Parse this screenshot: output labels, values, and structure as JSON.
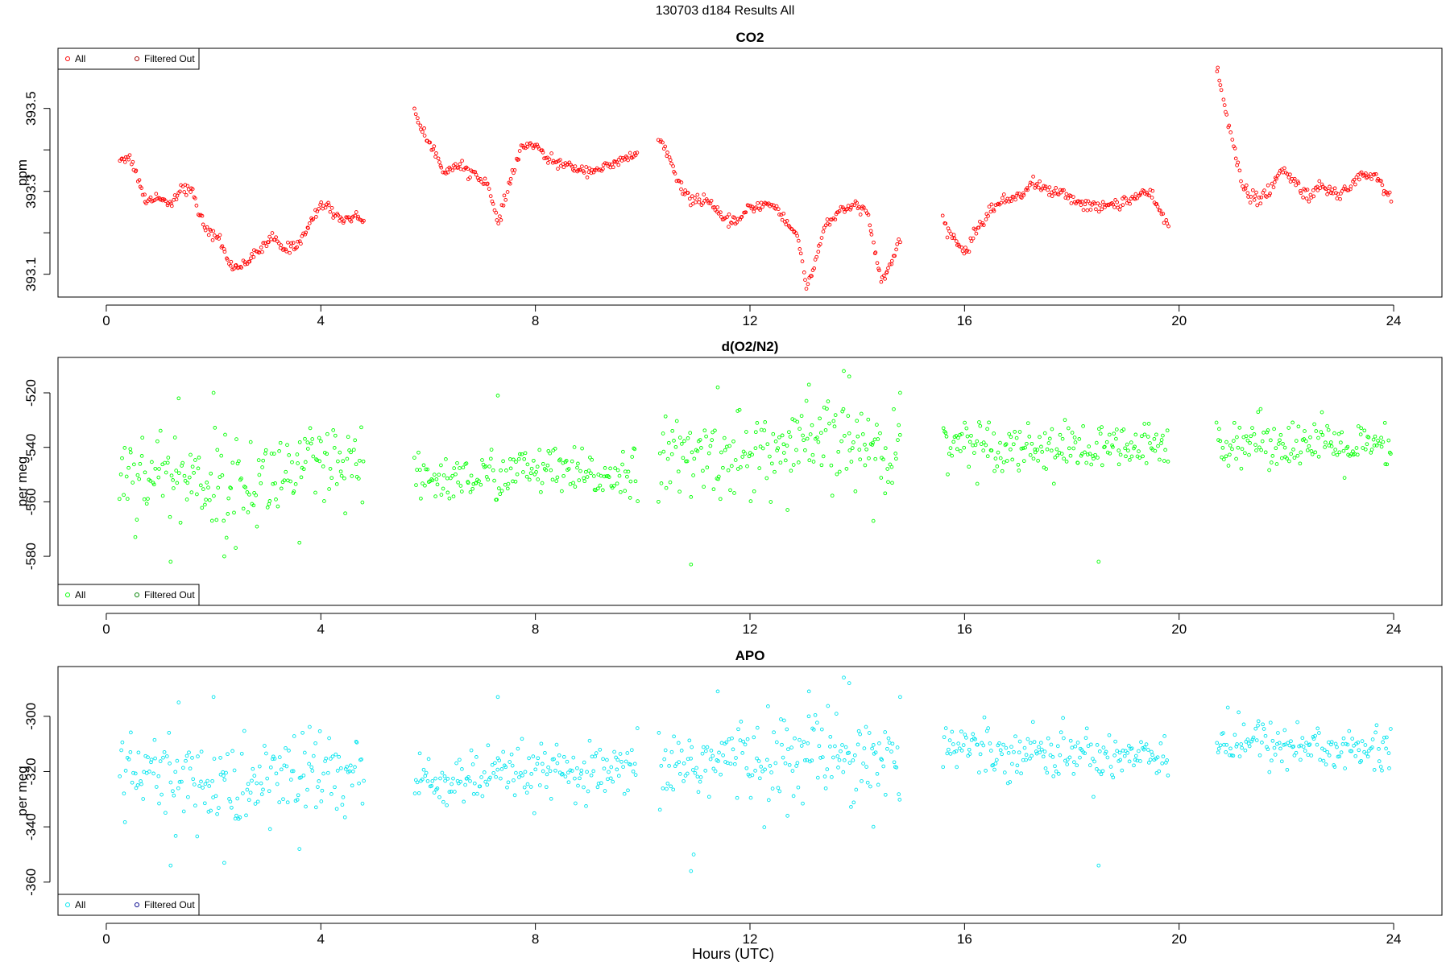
{
  "figure": {
    "title": "130703   d184   Results All",
    "xlabel": "Hours (UTC)"
  },
  "chart_data": [
    {
      "type": "scatter",
      "title": "CO2",
      "ylabel": "ppm",
      "xlabel": "Hours (UTC)",
      "xlim": [
        -0.9,
        24.9
      ],
      "ylim": [
        393.045,
        393.645
      ],
      "xticks": [
        0,
        4,
        8,
        12,
        16,
        20,
        24
      ],
      "yticks": [
        393.1,
        393.3,
        393.5
      ],
      "ytick_labels": [
        "393.1",
        "393.3",
        "393.5"
      ],
      "grid": false,
      "legend": {
        "position": "top-left",
        "entries": [
          "All",
          "Filtered Out"
        ],
        "colors": [
          "#ff0000",
          "#a00000"
        ]
      },
      "marker": "open-circle",
      "series": [
        {
          "name": "All",
          "color": "#ff0000",
          "segments": [
            {
              "x0": 0.25,
              "x1": 4.8,
              "noise": 0.006,
              "anchors": [
                [
                  0.25,
                  393.38
                ],
                [
                  0.45,
                  393.38
                ],
                [
                  0.6,
                  393.33
                ],
                [
                  0.75,
                  393.27
                ],
                [
                  0.9,
                  393.29
                ],
                [
                  1.05,
                  393.28
                ],
                [
                  1.2,
                  393.27
                ],
                [
                  1.4,
                  393.31
                ],
                [
                  1.6,
                  393.3
                ],
                [
                  1.75,
                  393.24
                ],
                [
                  1.9,
                  393.2
                ],
                [
                  2.1,
                  393.19
                ],
                [
                  2.3,
                  393.12
                ],
                [
                  2.5,
                  393.12
                ],
                [
                  2.7,
                  393.14
                ],
                [
                  2.9,
                  393.16
                ],
                [
                  3.1,
                  393.19
                ],
                [
                  3.3,
                  393.16
                ],
                [
                  3.55,
                  393.17
                ],
                [
                  3.8,
                  393.22
                ],
                [
                  4.0,
                  393.27
                ],
                [
                  4.15,
                  393.26
                ],
                [
                  4.4,
                  393.23
                ],
                [
                  4.6,
                  393.24
                ],
                [
                  4.8,
                  393.23
                ]
              ]
            },
            {
              "x0": 5.75,
              "x1": 9.9,
              "noise": 0.006,
              "anchors": [
                [
                  5.75,
                  393.5
                ],
                [
                  5.9,
                  393.44
                ],
                [
                  6.1,
                  393.4
                ],
                [
                  6.3,
                  393.35
                ],
                [
                  6.6,
                  393.36
                ],
                [
                  6.9,
                  393.34
                ],
                [
                  7.1,
                  393.32
                ],
                [
                  7.3,
                  393.22
                ],
                [
                  7.5,
                  393.31
                ],
                [
                  7.75,
                  393.41
                ],
                [
                  8.0,
                  393.41
                ],
                [
                  8.2,
                  393.38
                ],
                [
                  8.6,
                  393.36
                ],
                [
                  9.0,
                  393.35
                ],
                [
                  9.4,
                  393.36
                ],
                [
                  9.7,
                  393.38
                ],
                [
                  9.9,
                  393.39
                ]
              ]
            },
            {
              "x0": 10.3,
              "x1": 14.8,
              "noise": 0.006,
              "anchors": [
                [
                  10.3,
                  393.43
                ],
                [
                  10.5,
                  393.38
                ],
                [
                  10.65,
                  393.32
                ],
                [
                  10.9,
                  393.28
                ],
                [
                  11.2,
                  393.28
                ],
                [
                  11.5,
                  393.23
                ],
                [
                  11.8,
                  393.23
                ],
                [
                  12.0,
                  393.26
                ],
                [
                  12.3,
                  393.27
                ],
                [
                  12.5,
                  393.26
                ],
                [
                  12.7,
                  393.22
                ],
                [
                  12.9,
                  393.19
                ],
                [
                  13.05,
                  393.07
                ],
                [
                  13.2,
                  393.12
                ],
                [
                  13.4,
                  393.22
                ],
                [
                  13.7,
                  393.25
                ],
                [
                  14.0,
                  393.27
                ],
                [
                  14.2,
                  393.24
                ],
                [
                  14.45,
                  393.08
                ],
                [
                  14.6,
                  393.12
                ],
                [
                  14.8,
                  393.18
                ]
              ]
            },
            {
              "x0": 15.6,
              "x1": 19.8,
              "noise": 0.007,
              "anchors": [
                [
                  15.6,
                  393.22
                ],
                [
                  15.85,
                  393.18
                ],
                [
                  16.0,
                  393.15
                ],
                [
                  16.2,
                  393.2
                ],
                [
                  16.5,
                  393.26
                ],
                [
                  16.8,
                  393.28
                ],
                [
                  17.0,
                  393.29
                ],
                [
                  17.3,
                  393.32
                ],
                [
                  17.6,
                  393.3
                ],
                [
                  17.9,
                  393.29
                ],
                [
                  18.2,
                  393.27
                ],
                [
                  18.5,
                  393.26
                ],
                [
                  18.8,
                  393.27
                ],
                [
                  19.1,
                  393.28
                ],
                [
                  19.4,
                  393.3
                ],
                [
                  19.6,
                  393.26
                ],
                [
                  19.8,
                  393.22
                ]
              ]
            },
            {
              "x0": 20.7,
              "x1": 23.95,
              "noise": 0.008,
              "anchors": [
                [
                  20.7,
                  393.6
                ],
                [
                  20.85,
                  393.5
                ],
                [
                  21.0,
                  393.43
                ],
                [
                  21.2,
                  393.3
                ],
                [
                  21.45,
                  393.28
                ],
                [
                  21.7,
                  393.3
                ],
                [
                  21.9,
                  393.35
                ],
                [
                  22.1,
                  393.33
                ],
                [
                  22.4,
                  393.29
                ],
                [
                  22.7,
                  393.31
                ],
                [
                  22.95,
                  393.29
                ],
                [
                  23.15,
                  393.31
                ],
                [
                  23.4,
                  393.34
                ],
                [
                  23.65,
                  393.34
                ],
                [
                  23.95,
                  393.28
                ]
              ]
            }
          ]
        },
        {
          "name": "Filtered Out",
          "color": "#a00000",
          "segments": []
        }
      ]
    },
    {
      "type": "scatter",
      "title": "d(O2/N2)",
      "ylabel": "per meg",
      "xlabel": "Hours (UTC)",
      "xlim": [
        -0.9,
        24.9
      ],
      "ylim": [
        -598,
        -507
      ],
      "xticks": [
        0,
        4,
        8,
        12,
        16,
        20,
        24
      ],
      "yticks": [
        -580,
        -560,
        -540,
        -520
      ],
      "ytick_labels": [
        "-580",
        "-560",
        "-540",
        "-520"
      ],
      "grid": false,
      "legend": {
        "position": "bottom-left",
        "entries": [
          "All",
          "Filtered Out"
        ],
        "colors": [
          "#00ff00",
          "#008000"
        ]
      },
      "marker": "open-circle",
      "series": [
        {
          "name": "All",
          "color": "#00ff00",
          "segments": [
            {
              "x0": 0.25,
              "x1": 4.8,
              "noise": 8.5,
              "anchors": [
                [
                  0.25,
                  -548
                ],
                [
                  1.5,
                  -551
                ],
                [
                  2.5,
                  -555
                ],
                [
                  3.5,
                  -548
                ],
                [
                  4.8,
                  -549
                ]
              ]
            },
            {
              "x0": 5.75,
              "x1": 9.9,
              "noise": 4.5,
              "anchors": [
                [
                  5.75,
                  -552
                ],
                [
                  7.0,
                  -551
                ],
                [
                  8.0,
                  -548
                ],
                [
                  9.0,
                  -551
                ],
                [
                  9.9,
                  -548
                ]
              ]
            },
            {
              "x0": 10.3,
              "x1": 14.8,
              "noise": 7.5,
              "anchors": [
                [
                  10.3,
                  -545
                ],
                [
                  11.5,
                  -543
                ],
                [
                  12.5,
                  -542
                ],
                [
                  13.5,
                  -538
                ],
                [
                  14.8,
                  -542
                ]
              ]
            },
            {
              "x0": 15.6,
              "x1": 19.8,
              "noise": 4.5,
              "anchors": [
                [
                  15.6,
                  -537
                ],
                [
                  16.5,
                  -539
                ],
                [
                  17.5,
                  -540
                ],
                [
                  18.5,
                  -541
                ],
                [
                  19.8,
                  -540
                ]
              ]
            },
            {
              "x0": 20.7,
              "x1": 23.95,
              "noise": 4.5,
              "anchors": [
                [
                  20.7,
                  -537
                ],
                [
                  22.0,
                  -538
                ],
                [
                  23.0,
                  -540
                ],
                [
                  23.95,
                  -541
                ]
              ]
            }
          ],
          "extra_points": [
            [
              1.35,
              -522
            ],
            [
              2.0,
              -520
            ],
            [
              7.3,
              -521
            ],
            [
              11.4,
              -518
            ],
            [
              13.1,
              -517
            ],
            [
              13.75,
              -512
            ],
            [
              13.85,
              -514
            ],
            [
              14.8,
              -520
            ],
            [
              1.2,
              -582
            ],
            [
              2.2,
              -580
            ],
            [
              3.6,
              -575
            ],
            [
              10.9,
              -583
            ],
            [
              18.5,
              -582
            ],
            [
              14.3,
              -567
            ],
            [
              12.7,
              -563
            ]
          ]
        },
        {
          "name": "Filtered Out",
          "color": "#008000",
          "segments": []
        }
      ]
    },
    {
      "type": "scatter",
      "title": "APO",
      "ylabel": "per meg",
      "xlabel": "Hours (UTC)",
      "xlim": [
        -0.9,
        24.9
      ],
      "ylim": [
        -372,
        -282
      ],
      "xticks": [
        0,
        4,
        8,
        12,
        16,
        20,
        24
      ],
      "yticks": [
        -360,
        -340,
        -320,
        -300
      ],
      "ytick_labels": [
        "-360",
        "-340",
        "-320",
        "-300"
      ],
      "grid": false,
      "legend": {
        "position": "bottom-left",
        "entries": [
          "All",
          "Filtered Out"
        ],
        "colors": [
          "#00e5ee",
          "#00008b"
        ]
      },
      "marker": "open-circle",
      "series": [
        {
          "name": "All",
          "color": "#00e5ee",
          "segments": [
            {
              "x0": 0.25,
              "x1": 4.8,
              "noise": 8.5,
              "anchors": [
                [
                  0.25,
                  -321
                ],
                [
                  1.5,
                  -323
                ],
                [
                  2.5,
                  -327
                ],
                [
                  3.5,
                  -320
                ],
                [
                  4.8,
                  -322
                ]
              ]
            },
            {
              "x0": 5.75,
              "x1": 9.9,
              "noise": 5.0,
              "anchors": [
                [
                  5.75,
                  -324
                ],
                [
                  7.0,
                  -323
                ],
                [
                  8.0,
                  -320
                ],
                [
                  9.0,
                  -322
                ],
                [
                  9.9,
                  -320
                ]
              ]
            },
            {
              "x0": 10.3,
              "x1": 14.8,
              "noise": 7.5,
              "anchors": [
                [
                  10.3,
                  -318
                ],
                [
                  11.5,
                  -316
                ],
                [
                  12.5,
                  -315
                ],
                [
                  13.5,
                  -312
                ],
                [
                  14.8,
                  -316
                ]
              ]
            },
            {
              "x0": 15.6,
              "x1": 19.8,
              "noise": 4.5,
              "anchors": [
                [
                  15.6,
                  -310
                ],
                [
                  16.5,
                  -312
                ],
                [
                  17.5,
                  -313
                ],
                [
                  18.5,
                  -314
                ],
                [
                  19.8,
                  -313
                ]
              ]
            },
            {
              "x0": 20.7,
              "x1": 23.95,
              "noise": 4.5,
              "anchors": [
                [
                  20.7,
                  -309
                ],
                [
                  22.0,
                  -310
                ],
                [
                  23.0,
                  -312
                ],
                [
                  23.95,
                  -313
                ]
              ]
            }
          ],
          "extra_points": [
            [
              1.35,
              -295
            ],
            [
              2.0,
              -293
            ],
            [
              7.3,
              -293
            ],
            [
              11.4,
              -291
            ],
            [
              13.1,
              -291
            ],
            [
              13.75,
              -286
            ],
            [
              13.85,
              -288
            ],
            [
              14.8,
              -293
            ],
            [
              1.2,
              -354
            ],
            [
              2.2,
              -353
            ],
            [
              3.6,
              -348
            ],
            [
              10.9,
              -356
            ],
            [
              10.95,
              -350
            ],
            [
              18.5,
              -354
            ],
            [
              14.3,
              -340
            ],
            [
              12.7,
              -336
            ]
          ]
        },
        {
          "name": "Filtered Out",
          "color": "#00008b",
          "segments": []
        }
      ]
    }
  ]
}
